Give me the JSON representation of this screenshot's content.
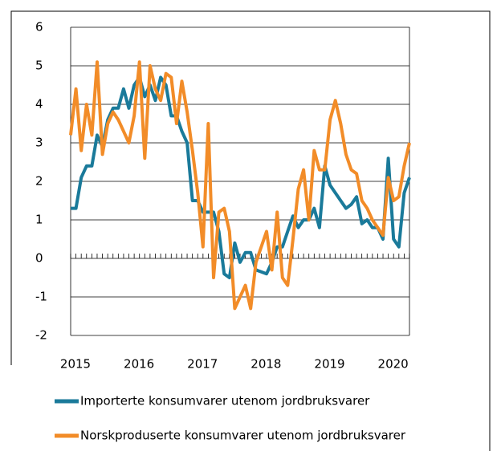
{
  "chart_data": {
    "type": "line",
    "categories": [
      "2015",
      null,
      null,
      null,
      null,
      null,
      null,
      null,
      null,
      null,
      null,
      null,
      "2016",
      null,
      null,
      null,
      null,
      null,
      null,
      null,
      null,
      null,
      null,
      null,
      "2017",
      null,
      null,
      null,
      null,
      null,
      null,
      null,
      null,
      null,
      null,
      null,
      "2018",
      null,
      null,
      null,
      null,
      null,
      null,
      null,
      null,
      null,
      null,
      null,
      "2019",
      null,
      null,
      null,
      null,
      null,
      null,
      null,
      null,
      null,
      null,
      null,
      "2020",
      null,
      null,
      null,
      null
    ],
    "series": [
      {
        "name": "Importerte konsumvarer utenom jordbruksvarer",
        "color": "#1a7a9a",
        "values": [
          1.3,
          1.3,
          2.1,
          2.4,
          2.4,
          3.2,
          2.9,
          3.6,
          3.9,
          3.9,
          4.4,
          3.9,
          4.5,
          4.7,
          4.2,
          4.5,
          4.1,
          4.7,
          4.5,
          3.7,
          3.7,
          3.3,
          3.0,
          1.5,
          1.5,
          1.2,
          1.2,
          1.2,
          0.7,
          -0.4,
          -0.5,
          0.4,
          -0.1,
          0.15,
          0.15,
          -0.3,
          -0.35,
          -0.4,
          -0.1,
          0.3,
          0.3,
          0.7,
          1.1,
          0.8,
          1.0,
          1.0,
          1.3,
          0.8,
          2.4,
          1.9,
          1.7,
          1.5,
          1.3,
          1.4,
          1.6,
          0.9,
          1.0,
          0.8,
          0.8,
          0.5,
          2.6,
          0.5,
          0.3,
          1.7,
          2.1
        ]
      },
      {
        "name": "Norskproduserte konsumvarer utenom jordbruksvarer",
        "color": "#f28c28",
        "values": [
          3.2,
          4.4,
          2.8,
          4.0,
          3.2,
          5.1,
          2.7,
          3.5,
          3.8,
          3.6,
          3.3,
          3.0,
          3.7,
          5.1,
          2.6,
          5.0,
          4.4,
          4.1,
          4.8,
          4.7,
          3.5,
          4.6,
          3.8,
          2.8,
          1.7,
          0.3,
          3.5,
          -0.5,
          1.2,
          1.3,
          0.7,
          -1.3,
          -1.0,
          -0.7,
          -1.3,
          -0.1,
          0.3,
          0.7,
          -0.3,
          1.2,
          -0.5,
          -0.7,
          0.5,
          1.8,
          2.3,
          1.0,
          2.8,
          2.3,
          2.3,
          3.6,
          4.1,
          3.5,
          2.7,
          2.3,
          2.2,
          1.5,
          1.3,
          1.0,
          0.8,
          0.6,
          2.1,
          1.5,
          1.6,
          2.4,
          3.0
        ]
      }
    ],
    "ylim": [
      -2,
      6
    ],
    "yticks": [
      -2,
      -1,
      0,
      1,
      2,
      3,
      4,
      5,
      6
    ],
    "grid": true
  }
}
